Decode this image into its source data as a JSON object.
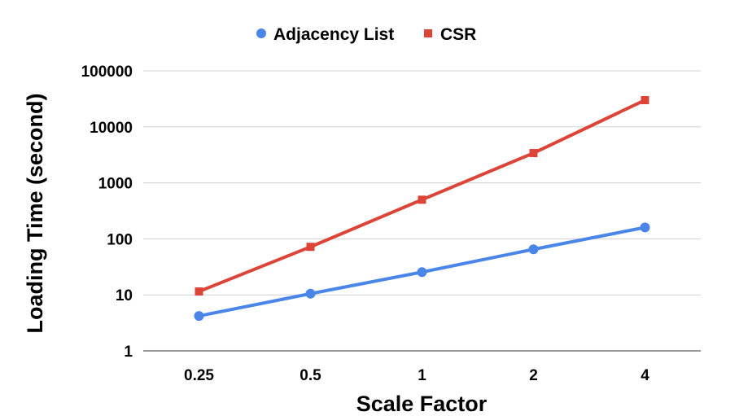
{
  "chart_data": {
    "type": "line",
    "categories": [
      "0.25",
      "0.5",
      "1",
      "2",
      "4"
    ],
    "series": [
      {
        "name": "Adjacency List",
        "color": "#4a86e8",
        "marker": "circle",
        "values": [
          4.2,
          10.5,
          25.5,
          65,
          160
        ]
      },
      {
        "name": "CSR",
        "color": "#db4437",
        "marker": "square",
        "values": [
          11.5,
          72,
          500,
          3400,
          30000
        ]
      }
    ],
    "title": "",
    "xlabel": "Scale Factor",
    "ylabel": "Loading Time (second)",
    "yscale": "log",
    "ylim": [
      1,
      100000
    ],
    "yticks": [
      "1",
      "10",
      "100",
      "1000",
      "10000",
      "100000"
    ],
    "grid": true,
    "legend_position": "top"
  }
}
